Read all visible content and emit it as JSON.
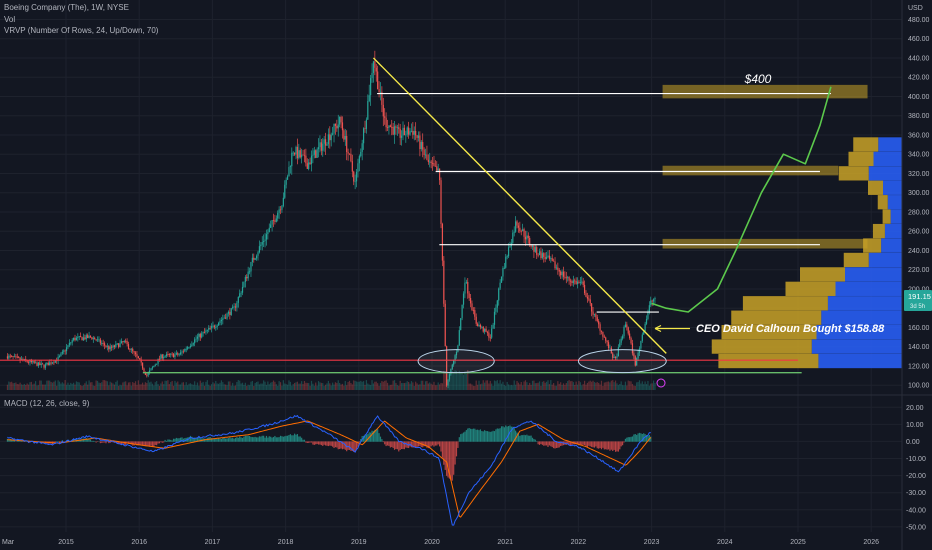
{
  "legend": {
    "title": "Boeing Company (The), 1W, NYSE",
    "vol": "Vol",
    "vrvp": "VRVP (Number Of Rows, 24, Up/Down, 70)",
    "macd": "MACD (12, 26, close, 9)"
  },
  "price_axis": {
    "currency": "USD",
    "last_price": "191.15",
    "countdown": "3d 5h"
  },
  "annotations": {
    "target": "$400",
    "ceo_note": "CEO David Calhoun Bought $158.88"
  },
  "colors": {
    "background": "#131722",
    "up_candle": "#26a69a",
    "down_candle": "#ef5350",
    "trendline": "#f5e94a",
    "projection": "#5cc94c",
    "support_red": "#f23645",
    "support_green": "#66bb6a",
    "macd_line": "#2962ff",
    "signal_line": "#ff6d00",
    "vrvp_up": "#2962ff",
    "vrvp_down": "#c9a227"
  },
  "chart_data": [
    {
      "type": "candlestick",
      "title": "Boeing Company (The), 1W, NYSE",
      "x_ticks": [
        "Mar",
        "2015",
        "2016",
        "2017",
        "2018",
        "2019",
        "2020",
        "2021",
        "2022",
        "2023",
        "2024",
        "2025",
        "2026"
      ],
      "y_ticks": [
        100,
        120,
        140,
        160,
        180,
        200,
        220,
        240,
        260,
        280,
        300,
        320,
        340,
        360,
        380,
        400,
        420,
        440,
        460,
        480
      ],
      "ylim": [
        95,
        495
      ],
      "price_path": [
        {
          "t": 2014.2,
          "v": 130
        },
        {
          "t": 2014.45,
          "v": 125
        },
        {
          "t": 2014.7,
          "v": 120
        },
        {
          "t": 2014.9,
          "v": 128
        },
        {
          "t": 2015.1,
          "v": 148
        },
        {
          "t": 2015.35,
          "v": 150
        },
        {
          "t": 2015.6,
          "v": 138
        },
        {
          "t": 2015.8,
          "v": 145
        },
        {
          "t": 2016.0,
          "v": 126
        },
        {
          "t": 2016.1,
          "v": 110
        },
        {
          "t": 2016.3,
          "v": 130
        },
        {
          "t": 2016.55,
          "v": 132
        },
        {
          "t": 2016.8,
          "v": 150
        },
        {
          "t": 2017.0,
          "v": 160
        },
        {
          "t": 2017.3,
          "v": 180
        },
        {
          "t": 2017.55,
          "v": 230
        },
        {
          "t": 2017.8,
          "v": 265
        },
        {
          "t": 2017.95,
          "v": 290
        },
        {
          "t": 2018.1,
          "v": 345
        },
        {
          "t": 2018.3,
          "v": 330
        },
        {
          "t": 2018.55,
          "v": 355
        },
        {
          "t": 2018.75,
          "v": 375
        },
        {
          "t": 2018.95,
          "v": 310
        },
        {
          "t": 2019.1,
          "v": 380
        },
        {
          "t": 2019.2,
          "v": 440
        },
        {
          "t": 2019.35,
          "v": 375
        },
        {
          "t": 2019.55,
          "v": 360
        },
        {
          "t": 2019.75,
          "v": 365
        },
        {
          "t": 2019.95,
          "v": 330
        },
        {
          "t": 2020.1,
          "v": 320
        },
        {
          "t": 2020.2,
          "v": 100
        },
        {
          "t": 2020.35,
          "v": 140
        },
        {
          "t": 2020.45,
          "v": 210
        },
        {
          "t": 2020.6,
          "v": 165
        },
        {
          "t": 2020.8,
          "v": 150
        },
        {
          "t": 2020.95,
          "v": 215
        },
        {
          "t": 2021.15,
          "v": 270
        },
        {
          "t": 2021.4,
          "v": 240
        },
        {
          "t": 2021.6,
          "v": 230
        },
        {
          "t": 2021.85,
          "v": 210
        },
        {
          "t": 2022.05,
          "v": 205
        },
        {
          "t": 2022.2,
          "v": 175
        },
        {
          "t": 2022.35,
          "v": 150
        },
        {
          "t": 2022.5,
          "v": 125
        },
        {
          "t": 2022.65,
          "v": 165
        },
        {
          "t": 2022.78,
          "v": 121
        },
        {
          "t": 2022.88,
          "v": 155
        },
        {
          "t": 2022.98,
          "v": 185
        },
        {
          "t": 2023.05,
          "v": 191.15
        }
      ],
      "trendline": {
        "from": {
          "t": 2019.2,
          "v": 440
        },
        "to": {
          "t": 2023.2,
          "v": 133
        }
      },
      "resistance_levels": [
        {
          "v": 403,
          "t0": 2019.25,
          "t1": 2025.45
        },
        {
          "v": 322,
          "t0": 2020.05,
          "t1": 2025.3
        },
        {
          "v": 246,
          "t0": 2020.1,
          "t1": 2025.3
        },
        {
          "v": 176,
          "t0": 2022.25,
          "t1": 2023.1
        }
      ],
      "support_red": {
        "v": 126,
        "t0": 2014.0,
        "t1": 2025.0
      },
      "support_green": {
        "v": 113,
        "t0": 2016.05,
        "t1": 2025.05
      },
      "zones": [
        {
          "t0": 2023.15,
          "t1": 2025.95,
          "v0": 398,
          "v1": 412
        },
        {
          "t0": 2023.15,
          "t1": 2025.55,
          "v0": 318,
          "v1": 328
        },
        {
          "t0": 2023.15,
          "t1": 2025.95,
          "v0": 242,
          "v1": 252
        }
      ],
      "ellipses": [
        {
          "t": 2020.33,
          "v": 125,
          "rt": 0.52,
          "rv": 12
        },
        {
          "t": 2022.6,
          "v": 125,
          "rt": 0.6,
          "rv": 12
        }
      ],
      "projection_path": [
        {
          "t": 2023.0,
          "v": 185
        },
        {
          "t": 2023.2,
          "v": 180
        },
        {
          "t": 2023.5,
          "v": 176
        },
        {
          "t": 2023.9,
          "v": 200
        },
        {
          "t": 2024.15,
          "v": 240
        },
        {
          "t": 2024.5,
          "v": 300
        },
        {
          "t": 2024.8,
          "v": 340
        },
        {
          "t": 2025.1,
          "v": 330
        },
        {
          "t": 2025.3,
          "v": 370
        },
        {
          "t": 2025.45,
          "v": 410
        }
      ],
      "vrvp_rows": [
        {
          "v": 350,
          "up": 0.25,
          "down": 0.25
        },
        {
          "v": 335,
          "up": 0.3,
          "down": 0.25
        },
        {
          "v": 320,
          "up": 0.35,
          "down": 0.3
        },
        {
          "v": 305,
          "up": 0.2,
          "down": 0.15
        },
        {
          "v": 290,
          "up": 0.15,
          "down": 0.1
        },
        {
          "v": 275,
          "up": 0.12,
          "down": 0.08
        },
        {
          "v": 260,
          "up": 0.18,
          "down": 0.12
        },
        {
          "v": 245,
          "up": 0.22,
          "down": 0.18
        },
        {
          "v": 230,
          "up": 0.35,
          "down": 0.25
        },
        {
          "v": 215,
          "up": 0.6,
          "down": 0.45
        },
        {
          "v": 200,
          "up": 0.7,
          "down": 0.5
        },
        {
          "v": 185,
          "up": 0.78,
          "down": 0.85
        },
        {
          "v": 170,
          "up": 0.85,
          "down": 0.9
        },
        {
          "v": 155,
          "up": 0.9,
          "down": 0.95
        },
        {
          "v": 140,
          "up": 0.95,
          "down": 1.0
        },
        {
          "v": 125,
          "up": 0.88,
          "down": 1.0
        }
      ]
    },
    {
      "type": "line",
      "title": "MACD (12, 26, close, 9)",
      "y_ticks": [
        20.0,
        10.0,
        0.0,
        -10.0,
        -20.0,
        -30.0,
        -40.0,
        -50.0
      ],
      "ylim": [
        -53,
        26
      ],
      "macd_path": [
        {
          "t": 2014.2,
          "v": 2
        },
        {
          "t": 2014.8,
          "v": -2
        },
        {
          "t": 2015.3,
          "v": 3
        },
        {
          "t": 2015.9,
          "v": -3
        },
        {
          "t": 2016.2,
          "v": -6
        },
        {
          "t": 2016.7,
          "v": 2
        },
        {
          "t": 2017.3,
          "v": 5
        },
        {
          "t": 2017.8,
          "v": 10
        },
        {
          "t": 2018.15,
          "v": 15
        },
        {
          "t": 2018.6,
          "v": 4
        },
        {
          "t": 2018.95,
          "v": -6
        },
        {
          "t": 2019.25,
          "v": 15
        },
        {
          "t": 2019.55,
          "v": 0
        },
        {
          "t": 2019.85,
          "v": -4
        },
        {
          "t": 2020.1,
          "v": -10
        },
        {
          "t": 2020.28,
          "v": -50
        },
        {
          "t": 2020.5,
          "v": -30
        },
        {
          "t": 2020.8,
          "v": -15
        },
        {
          "t": 2021.1,
          "v": 8
        },
        {
          "t": 2021.35,
          "v": 12
        },
        {
          "t": 2021.7,
          "v": 0
        },
        {
          "t": 2022.0,
          "v": -3
        },
        {
          "t": 2022.35,
          "v": -12
        },
        {
          "t": 2022.55,
          "v": -18
        },
        {
          "t": 2022.75,
          "v": -6
        },
        {
          "t": 2022.85,
          "v": 0
        },
        {
          "t": 2023.0,
          "v": 6
        }
      ],
      "signal_path": [
        {
          "t": 2014.2,
          "v": 1
        },
        {
          "t": 2014.9,
          "v": -1
        },
        {
          "t": 2015.4,
          "v": 2
        },
        {
          "t": 2016.0,
          "v": -2
        },
        {
          "t": 2016.35,
          "v": -4
        },
        {
          "t": 2016.9,
          "v": 1
        },
        {
          "t": 2017.5,
          "v": 4
        },
        {
          "t": 2017.95,
          "v": 9
        },
        {
          "t": 2018.3,
          "v": 12
        },
        {
          "t": 2018.75,
          "v": 4
        },
        {
          "t": 2019.05,
          "v": -2
        },
        {
          "t": 2019.35,
          "v": 12
        },
        {
          "t": 2019.65,
          "v": 2
        },
        {
          "t": 2019.95,
          "v": -3
        },
        {
          "t": 2020.2,
          "v": -12
        },
        {
          "t": 2020.38,
          "v": -45
        },
        {
          "t": 2020.6,
          "v": -32
        },
        {
          "t": 2020.95,
          "v": -12
        },
        {
          "t": 2021.2,
          "v": 6
        },
        {
          "t": 2021.45,
          "v": 10
        },
        {
          "t": 2021.8,
          "v": 1
        },
        {
          "t": 2022.1,
          "v": -3
        },
        {
          "t": 2022.45,
          "v": -10
        },
        {
          "t": 2022.65,
          "v": -14
        },
        {
          "t": 2022.85,
          "v": -5
        },
        {
          "t": 2023.0,
          "v": 3
        }
      ]
    }
  ]
}
